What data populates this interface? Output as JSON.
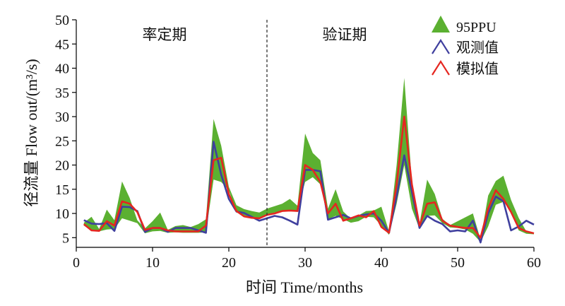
{
  "chart_data": {
    "type": "area",
    "xlabel": "时间 Time/months",
    "ylabel": "径流量 Flow out/(m³/s)",
    "xlim": [
      0,
      60
    ],
    "ylim": [
      3,
      50
    ],
    "xticks": [
      0,
      10,
      20,
      30,
      40,
      50,
      60
    ],
    "yticks": [
      5,
      10,
      15,
      20,
      25,
      30,
      35,
      40,
      45,
      50
    ],
    "grid": false,
    "legend_position": "top-right",
    "divider_x": 25,
    "periods": [
      "率定期",
      "验证期"
    ],
    "x": [
      1,
      2,
      3,
      4,
      5,
      6,
      7,
      8,
      9,
      10,
      11,
      12,
      13,
      14,
      15,
      16,
      17,
      18,
      19,
      20,
      21,
      22,
      23,
      24,
      25,
      26,
      27,
      28,
      29,
      30,
      31,
      32,
      33,
      34,
      35,
      36,
      37,
      38,
      39,
      40,
      41,
      42,
      43,
      44,
      45,
      46,
      47,
      48,
      49,
      50,
      51,
      52,
      53,
      54,
      55,
      56,
      57,
      58,
      59,
      60
    ],
    "series": [
      {
        "name": "95PPU",
        "type": "band",
        "color": "#5bb031",
        "lower": [
          7.5,
          6.4,
          6.3,
          6.7,
          6.8,
          9.0,
          8.5,
          8.0,
          5.9,
          6.3,
          6.4,
          6.0,
          6.1,
          6.0,
          6.0,
          6.0,
          6.1,
          17.0,
          16.5,
          14.8,
          10.2,
          9.6,
          9.2,
          9.0,
          9.8,
          10.2,
          10.4,
          10.5,
          10.6,
          16.5,
          17.5,
          16.0,
          8.8,
          9.5,
          8.8,
          8.1,
          8.4,
          9.3,
          9.2,
          7.5,
          5.6,
          12.0,
          20.0,
          11.0,
          6.8,
          9.5,
          9.6,
          8.0,
          7.1,
          7.0,
          6.7,
          5.8,
          4.1,
          7.3,
          11.8,
          12.4,
          10.5,
          6.5,
          5.8,
          5.7
        ],
        "upper": [
          8.1,
          9.3,
          6.8,
          10.8,
          8.6,
          16.6,
          13.2,
          8.6,
          6.9,
          8.4,
          10.2,
          6.6,
          7.4,
          7.6,
          7.2,
          7.8,
          8.8,
          29.5,
          24.0,
          15.5,
          11.7,
          10.9,
          10.5,
          10.2,
          11.0,
          11.5,
          12.0,
          13.0,
          11.6,
          26.5,
          22.5,
          21.0,
          11.0,
          15.0,
          10.4,
          8.9,
          9.6,
          10.5,
          10.6,
          11.4,
          6.3,
          20.0,
          38.0,
          16.6,
          7.8,
          17.0,
          14.0,
          8.9,
          7.6,
          8.4,
          9.2,
          10.0,
          4.6,
          13.7,
          16.7,
          17.8,
          12.8,
          9.1,
          6.3,
          6.0
        ]
      },
      {
        "name": "观测值",
        "type": "line",
        "color": "#3f3f9e",
        "values": [
          8.6,
          7.9,
          7.8,
          8.0,
          6.4,
          11.4,
          11.3,
          10.5,
          6.2,
          7.0,
          7.0,
          6.2,
          7.0,
          7.0,
          7.0,
          6.5,
          6.0,
          24.8,
          18.0,
          13.0,
          10.4,
          10.1,
          9.3,
          8.5,
          9.0,
          9.5,
          9.2,
          8.5,
          7.7,
          19.0,
          19.0,
          18.7,
          8.7,
          9.2,
          9.7,
          9.0,
          9.5,
          9.8,
          10.0,
          8.5,
          6.0,
          13.5,
          22.0,
          14.5,
          7.0,
          9.5,
          8.5,
          7.8,
          6.3,
          6.5,
          6.3,
          8.5,
          4.0,
          10.0,
          13.5,
          12.5,
          6.5,
          7.3,
          8.5,
          7.7
        ]
      },
      {
        "name": "模拟值",
        "type": "line",
        "color": "#e52620",
        "values": [
          7.8,
          6.5,
          6.4,
          8.4,
          7.5,
          12.5,
          12.0,
          10.3,
          6.6,
          7.0,
          7.0,
          6.5,
          6.3,
          6.3,
          6.3,
          6.3,
          7.5,
          21.0,
          21.5,
          14.0,
          10.5,
          9.4,
          9.1,
          9.0,
          9.7,
          10.0,
          10.5,
          10.6,
          10.5,
          20.0,
          19.0,
          16.5,
          10.0,
          12.0,
          8.5,
          9.0,
          9.6,
          9.2,
          10.5,
          7.2,
          6.0,
          16.0,
          30.0,
          16.0,
          7.5,
          12.0,
          12.3,
          8.5,
          7.5,
          7.2,
          7.0,
          7.0,
          5.0,
          11.0,
          14.8,
          13.0,
          10.3,
          7.0,
          6.3,
          5.9
        ]
      }
    ]
  }
}
